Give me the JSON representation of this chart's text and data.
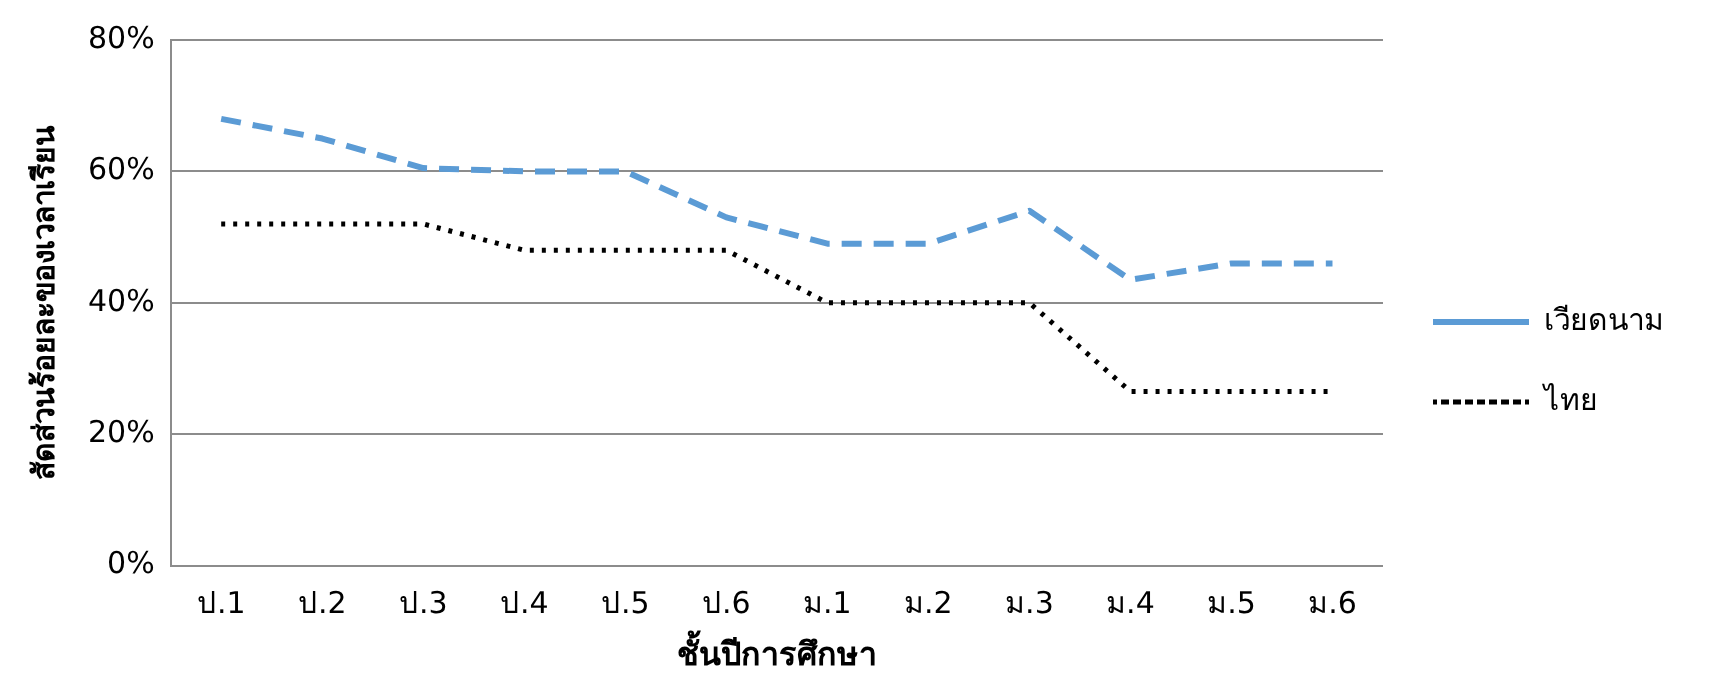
{
  "chart_data": {
    "type": "line",
    "xlabel": "ชั้นปีการศึกษา",
    "ylabel": "สัดส่วนร้อยละของเวลาเรียน",
    "categories": [
      "ป.1",
      "ป.2",
      "ป.3",
      "ป.4",
      "ป.5",
      "ป.6",
      "ม.1",
      "ม.2",
      "ม.3",
      "ม.4",
      "ม.5",
      "ม.6"
    ],
    "series": [
      {
        "name": "เวียดนาม",
        "color": "#5b9bd5",
        "line_style": "dashed",
        "values": [
          68,
          65,
          60.5,
          60,
          60,
          53,
          49,
          49,
          54,
          43.5,
          46,
          46
        ]
      },
      {
        "name": "ไทย",
        "color": "#000000",
        "line_style": "dotted",
        "values": [
          52,
          52,
          52,
          48,
          48,
          48,
          40,
          40,
          40,
          26.5,
          26.5,
          26.5
        ]
      }
    ],
    "ylim": [
      0,
      80
    ],
    "yticks": [
      {
        "value": 0,
        "label": "0%"
      },
      {
        "value": 20,
        "label": "20%"
      },
      {
        "value": 40,
        "label": "40%"
      },
      {
        "value": 60,
        "label": "60%"
      },
      {
        "value": 80,
        "label": "80%"
      }
    ],
    "grid": "y",
    "legend": "right",
    "marker": "none"
  }
}
